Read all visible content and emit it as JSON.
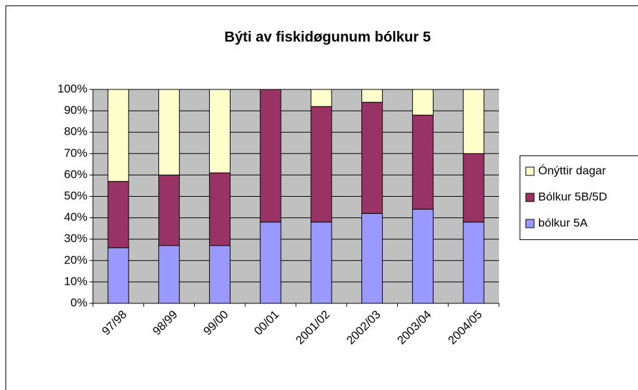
{
  "chart_data": {
    "type": "stacked_bar_percent",
    "title": "Býti av fiskidøgunum bólkur 5",
    "categories": [
      "97/98",
      "98/99",
      "99/00",
      "00/01",
      "2001/02",
      "2002/03",
      "2003/04",
      "2004/05"
    ],
    "series": [
      {
        "name": "bólkur 5A",
        "color": "#9999ff",
        "values": [
          26,
          27,
          27,
          38,
          38,
          42,
          44,
          38
        ]
      },
      {
        "name": "Bólkur 5B/5D",
        "color": "#993366",
        "values": [
          31,
          33,
          34,
          62,
          54,
          52,
          44,
          32
        ]
      },
      {
        "name": "Ónýttir dagar",
        "color": "#ffffcc",
        "values": [
          43,
          40,
          39,
          0,
          8,
          6,
          12,
          30
        ]
      }
    ],
    "ylim": [
      0,
      100
    ],
    "yticks": [
      {
        "value": 0,
        "label": "0%"
      },
      {
        "value": 10,
        "label": "10%"
      },
      {
        "value": 20,
        "label": "20%"
      },
      {
        "value": 30,
        "label": "30%"
      },
      {
        "value": 40,
        "label": "40%"
      },
      {
        "value": 50,
        "label": "50%"
      },
      {
        "value": 60,
        "label": "60%"
      },
      {
        "value": 70,
        "label": "70%"
      },
      {
        "value": 80,
        "label": "80%"
      },
      {
        "value": 90,
        "label": "90%"
      },
      {
        "value": 100,
        "label": "100%"
      }
    ],
    "grid": true,
    "plot_background": "#c0c0c0",
    "legend": "right"
  }
}
